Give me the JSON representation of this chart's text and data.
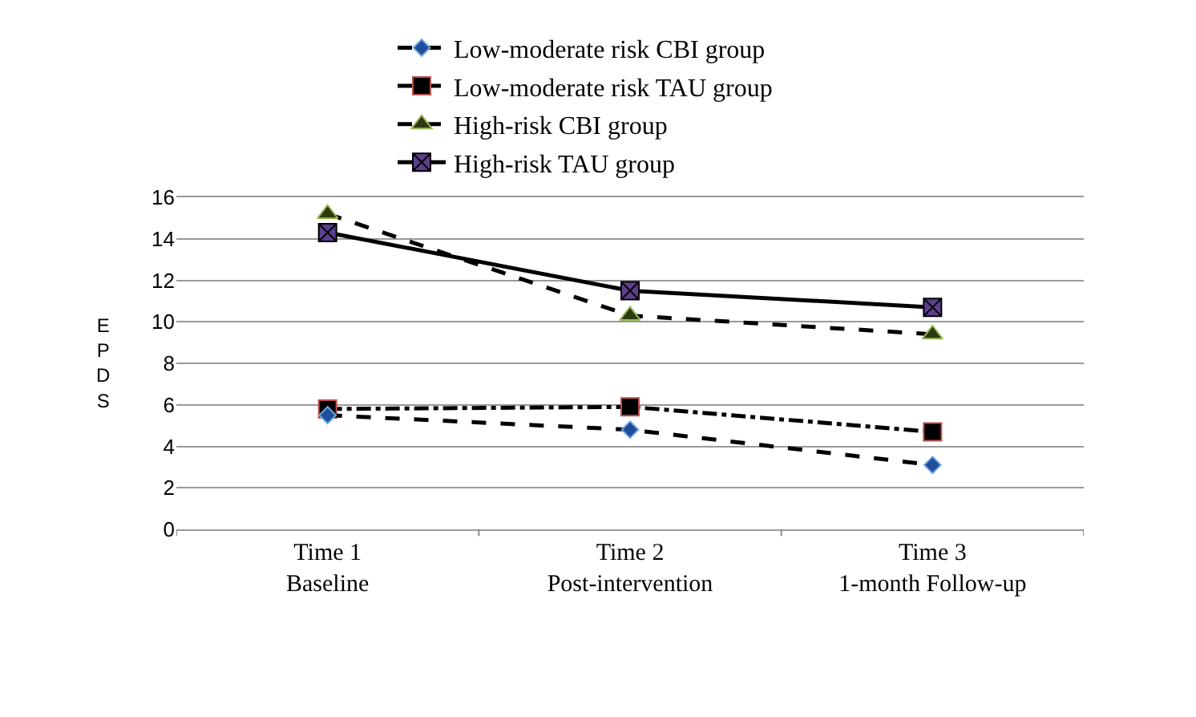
{
  "chart_data": {
    "type": "line",
    "ylabel": "EPDS",
    "categories": [
      "Time 1\nBaseline",
      "Time 2\nPost-intervention",
      "Time 3\n1-month Follow-up"
    ],
    "ylim": [
      0,
      16
    ],
    "yticks": [
      0,
      2,
      4,
      6,
      8,
      10,
      12,
      14,
      16
    ],
    "grid": "y",
    "legend": "top",
    "series": [
      {
        "name": "Low-moderate risk CBI group",
        "color": "#000000",
        "marker": "diamond",
        "line_style": "dashed",
        "values": [
          5.5,
          4.8,
          3.1
        ]
      },
      {
        "name": "Low-moderate risk TAU group",
        "color": "#000000",
        "marker": "square",
        "line_style": "dotted",
        "values": [
          5.8,
          5.9,
          4.7
        ]
      },
      {
        "name": "High-risk CBI group",
        "color": "#000000",
        "marker": "triangle",
        "line_style": "dashed",
        "values": [
          15.2,
          10.3,
          9.4
        ]
      },
      {
        "name": "High-risk TAU group",
        "color": "#000000",
        "marker": "cross",
        "line_style": "solid",
        "values": [
          14.3,
          11.5,
          10.7
        ]
      }
    ]
  }
}
